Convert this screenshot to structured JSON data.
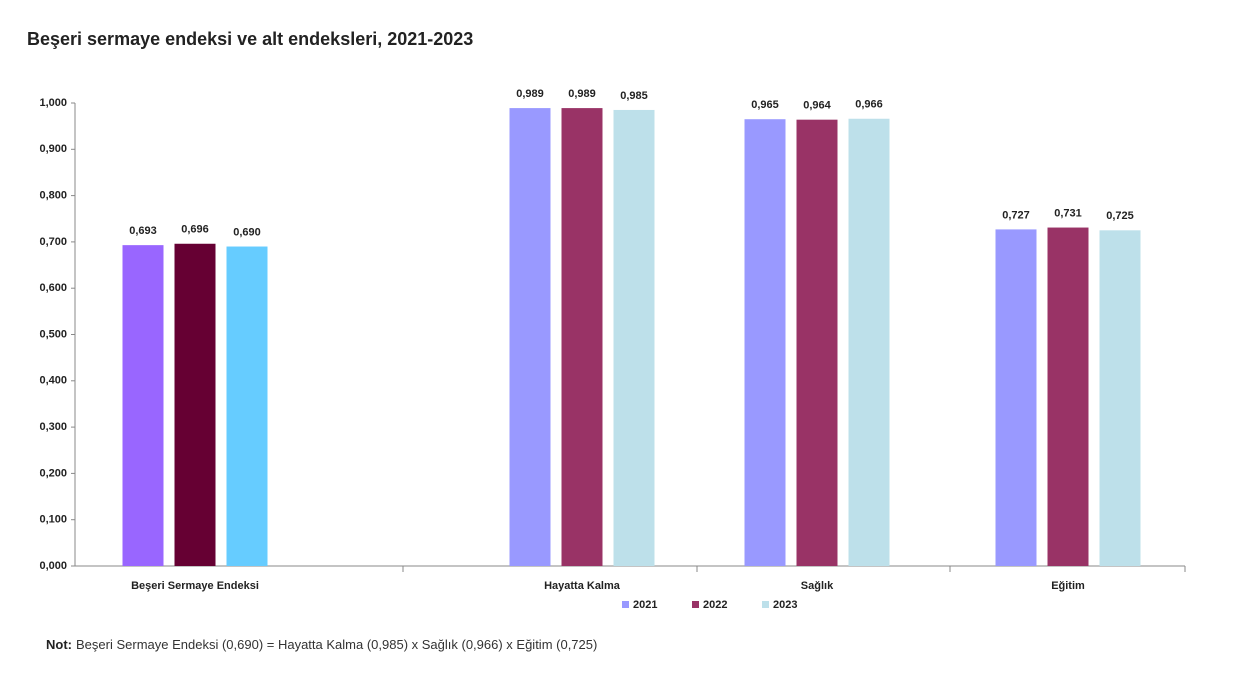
{
  "chart_data": {
    "type": "bar",
    "title": "Beşeri sermaye endeksi ve alt endeksleri, 2021-2023",
    "categories": [
      "Beşeri Sermaye Endeksi",
      "Hayatta Kalma",
      "Sağlık",
      "Eğitim"
    ],
    "series": [
      {
        "name": "2021",
        "color": "#9999ff",
        "colors": [
          "#9966ff",
          "#9999ff",
          "#9999ff",
          "#9999ff"
        ],
        "values": [
          0.693,
          0.989,
          0.965,
          0.727
        ],
        "value_labels": [
          "0,693",
          "0,989",
          "0,965",
          "0,727"
        ]
      },
      {
        "name": "2022",
        "color": "#993366",
        "colors": [
          "#660033",
          "#993366",
          "#993366",
          "#993366"
        ],
        "values": [
          0.696,
          0.989,
          0.964,
          0.731
        ],
        "value_labels": [
          "0,696",
          "0,989",
          "0,964",
          "0,731"
        ]
      },
      {
        "name": "2023",
        "color": "#bde0ea",
        "colors": [
          "#66ccff",
          "#bde0ea",
          "#bde0ea",
          "#bde0ea"
        ],
        "values": [
          0.69,
          0.985,
          0.966,
          0.725
        ],
        "value_labels": [
          "0,690",
          "0,985",
          "0,966",
          "0,725"
        ]
      }
    ],
    "ylim": [
      0,
      1
    ],
    "yticks": [
      {
        "value": 0,
        "label": "0,000"
      },
      {
        "value": 0.1,
        "label": "0,100"
      },
      {
        "value": 0.2,
        "label": "0,200"
      },
      {
        "value": 0.3,
        "label": "0,300"
      },
      {
        "value": 0.4,
        "label": "0,400"
      },
      {
        "value": 0.5,
        "label": "0,500"
      },
      {
        "value": 0.6,
        "label": "0,600"
      },
      {
        "value": 0.7,
        "label": "0,700"
      },
      {
        "value": 0.8,
        "label": "0,800"
      },
      {
        "value": 0.9,
        "label": "0,900"
      },
      {
        "value": 1,
        "label": "1,000"
      }
    ],
    "grid": false,
    "legend": "bottom",
    "note_label": "Not:",
    "note": "Beşeri Sermaye Endeksi (0,690) = Hayatta Kalma (0,985) x Sağlık (0,966) x Eğitim (0,725)"
  }
}
